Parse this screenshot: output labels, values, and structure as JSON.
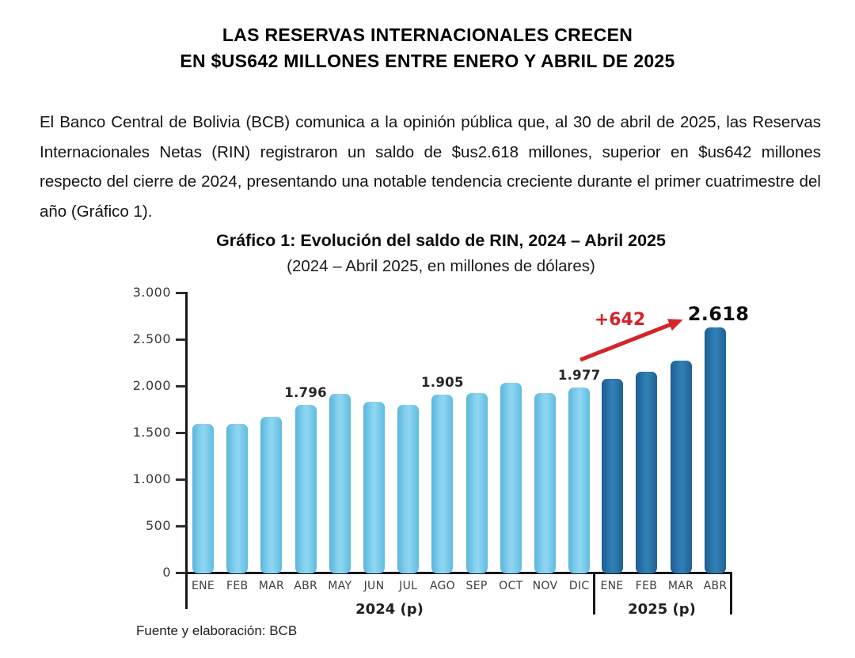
{
  "document": {
    "title_line1": "LAS RESERVAS INTERNACIONALES CRECEN",
    "title_line2": "EN $US642 MILLONES ENTRE ENERO Y ABRIL DE 2025",
    "paragraph": "El Banco Central de Bolivia (BCB) comunica a la opinión pública que, al 30 de abril de 2025, las Reservas Internacionales Netas (RIN) registraron un saldo de $us2.618 millones, superior en $us642 millones respecto del cierre de 2024, presentando una notable tendencia creciente durante el primer cuatrimestre del año (Gráfico 1).",
    "source_note": "Fuente y elaboración: BCB"
  },
  "chart_data": {
    "type": "bar",
    "title": "Gráfico 1: Evolución del saldo de RIN, 2024 – Abril 2025",
    "subtitle": "(2024 – Abril 2025, en millones de dólares)",
    "ylabel": "millones de dólares",
    "ylim": [
      0,
      3000
    ],
    "ytick_interval": 500,
    "ytick_labels": [
      "0",
      "500",
      "1.000",
      "1.500",
      "2.000",
      "2.500",
      "3.000"
    ],
    "grid": false,
    "legend_position": "none",
    "groups": [
      {
        "label": "2024 (p)",
        "color": "#74c7e9",
        "months": [
          "ENE",
          "FEB",
          "MAR",
          "ABR",
          "MAY",
          "JUN",
          "JUL",
          "AGO",
          "SEP",
          "OCT",
          "NOV",
          "DIC"
        ],
        "values": [
          1590,
          1592,
          1665,
          1796,
          1915,
          1825,
          1795,
          1905,
          1925,
          2035,
          1925,
          1977
        ],
        "value_labels": [
          "",
          "",
          "",
          "1.796",
          "",
          "",
          "",
          "1.905",
          "",
          "",
          "",
          "1.977"
        ]
      },
      {
        "label": "2025 (p)",
        "color": "#2572a8",
        "months": [
          "ENE",
          "FEB",
          "MAR",
          "ABR"
        ],
        "values": [
          2075,
          2150,
          2270,
          2618
        ],
        "value_labels": [
          "",
          "",
          "",
          "2.618"
        ]
      }
    ],
    "annotation": {
      "text": "+642",
      "color": "#d2252d",
      "from": "DIC 2024",
      "to": "ABR 2025"
    }
  }
}
